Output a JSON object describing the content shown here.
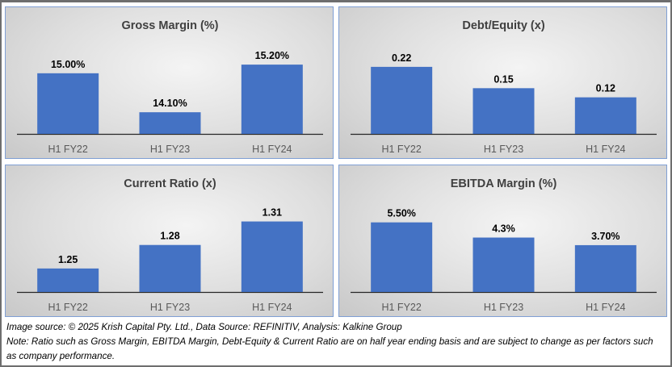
{
  "chart_data": [
    {
      "type": "bar",
      "title": "Gross Margin (%)",
      "categories": [
        "H1 FY22",
        "H1 FY23",
        "H1 FY24"
      ],
      "values": [
        15.0,
        14.1,
        15.2
      ],
      "labels": [
        "15.00%",
        "14.10%",
        "15.20%"
      ],
      "ylim": [
        13.6,
        15.5
      ],
      "grid": false,
      "color": "#4472C4"
    },
    {
      "type": "bar",
      "title": "Debt/Equity (x)",
      "categories": [
        "H1 FY22",
        "H1 FY23",
        "H1 FY24"
      ],
      "values": [
        0.22,
        0.15,
        0.12
      ],
      "labels": [
        "0.22",
        "0.15",
        "0.12"
      ],
      "ylim": [
        0,
        0.27
      ],
      "grid": false,
      "color": "#4472C4"
    },
    {
      "type": "bar",
      "title": "Current Ratio (x)",
      "categories": [
        "H1 FY22",
        "H1 FY23",
        "H1 FY24"
      ],
      "values": [
        1.25,
        1.28,
        1.31
      ],
      "labels": [
        "1.25",
        "1.28",
        "1.31"
      ],
      "ylim": [
        1.22,
        1.325
      ],
      "grid": false,
      "color": "#4472C4"
    },
    {
      "type": "bar",
      "title": "EBITDA Margin (%)",
      "categories": [
        "H1 FY22",
        "H1 FY23",
        "H1 FY24"
      ],
      "values": [
        5.5,
        4.3,
        3.7
      ],
      "labels": [
        "5.50%",
        "4.3%",
        "3.70%"
      ],
      "ylim": [
        0,
        6.5
      ],
      "grid": false,
      "color": "#4472C4"
    }
  ],
  "footer": {
    "source": "Image source: © 2025 Krish Capital Pty. Ltd., Data Source: REFINITIV, Analysis: Kalkine Group",
    "note": "Note: Ratio such as Gross Margin, EBITDA Margin, Debt-Equity & Current Ratio are on half year ending basis and are subject to change as per factors such as company performance."
  }
}
